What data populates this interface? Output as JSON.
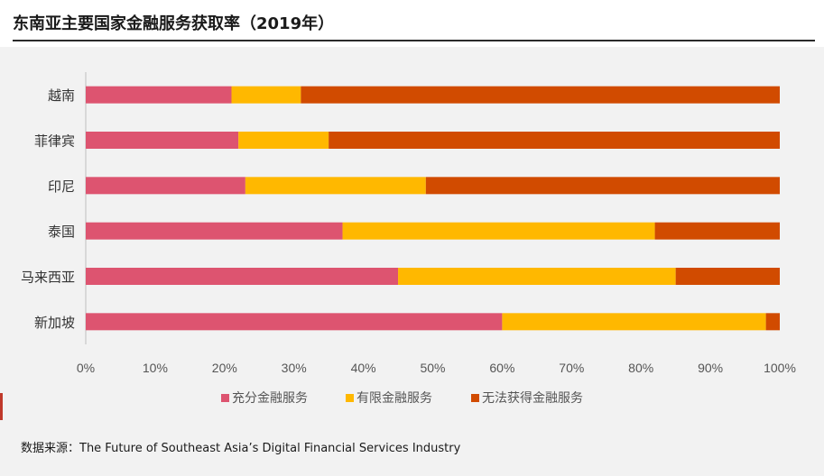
{
  "title": "东南亚主要国家金融服务获取率（2019年）",
  "source": "数据来源：The Future of Southeast Asia’s Digital Financial Services Industry",
  "chart_data": {
    "type": "bar",
    "orientation": "horizontal",
    "stacked": true,
    "categories": [
      "越南",
      "菲律宾",
      "印尼",
      "泰国",
      "马来西亚",
      "新加坡"
    ],
    "series": [
      {
        "name": "充分金融服务",
        "color": "#dd5470",
        "values": [
          21,
          22,
          23,
          37,
          45,
          60
        ]
      },
      {
        "name": "有限金融服务",
        "color": "#ffb800",
        "values": [
          10,
          13,
          26,
          45,
          40,
          38
        ]
      },
      {
        "name": "无法获得金融服务",
        "color": "#d14b00",
        "values": [
          69,
          65,
          51,
          18,
          15,
          2
        ]
      }
    ],
    "xlim": [
      0,
      100
    ],
    "xticks": [
      "0%",
      "10%",
      "20%",
      "30%",
      "40%",
      "50%",
      "60%",
      "70%",
      "80%",
      "90%",
      "100%"
    ],
    "legend_position": "bottom",
    "grid": false
  }
}
